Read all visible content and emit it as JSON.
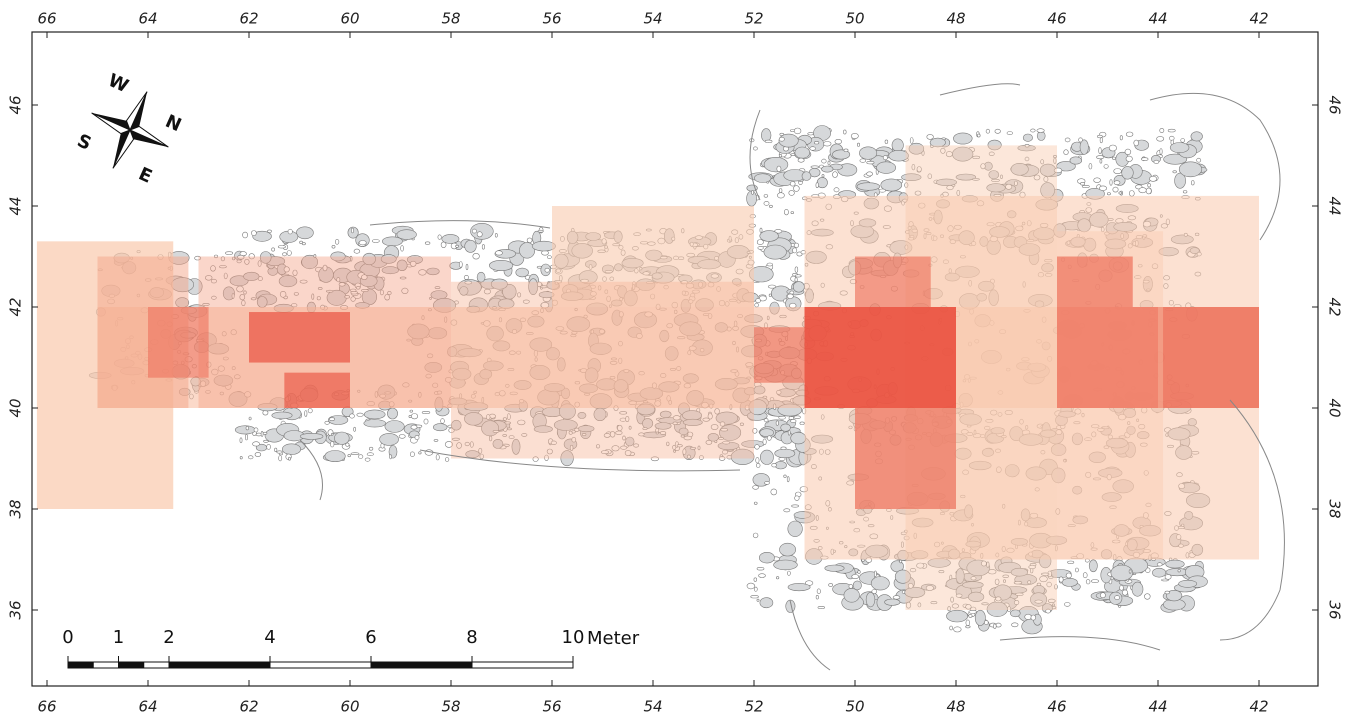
{
  "map": {
    "x_ticks": [
      66,
      64,
      62,
      60,
      58,
      56,
      54,
      52,
      50,
      48,
      46,
      44,
      42
    ],
    "y_ticks": [
      46,
      44,
      42,
      40,
      38,
      36
    ],
    "compass": {
      "north": "N",
      "east": "E",
      "south": "S",
      "west": "W"
    },
    "scale_bar": {
      "labels": [
        0,
        1,
        2,
        4,
        6,
        8,
        10
      ],
      "unit": "Meter"
    }
  }
}
